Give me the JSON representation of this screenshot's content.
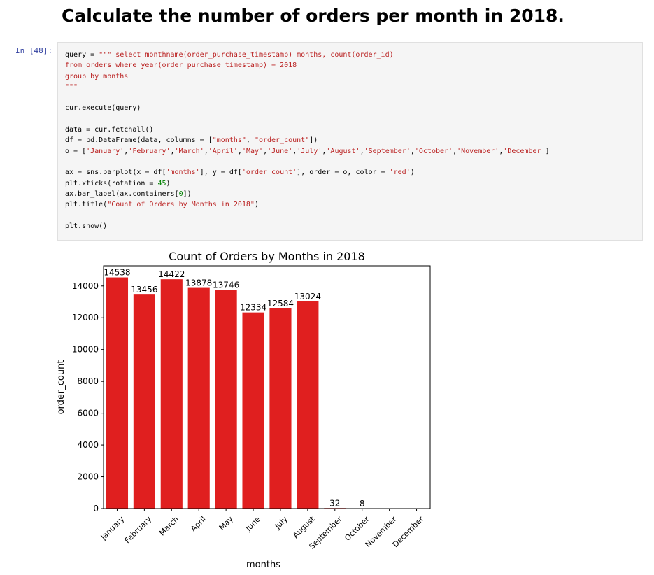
{
  "notebook": {
    "heading": "Calculate the number of orders per month in 2018.",
    "cell_prompt": "In [48]:",
    "code_lines": [
      [
        [
          "t",
          "query = "
        ],
        [
          "s",
          "\"\"\" select monthname(order_purchase_timestamp) months, count(order_id)"
        ]
      ],
      [
        [
          "s",
          "from orders where year(order_purchase_timestamp) = 2018"
        ]
      ],
      [
        [
          "s",
          "group by months"
        ]
      ],
      [
        [
          "s",
          "\"\"\""
        ]
      ],
      [],
      [
        [
          "t",
          "cur.execute(query)"
        ]
      ],
      [],
      [
        [
          "t",
          "data = cur.fetchall()"
        ]
      ],
      [
        [
          "t",
          "df = pd.DataFrame(data, columns = ["
        ],
        [
          "s",
          "\"months\""
        ],
        [
          "t",
          ", "
        ],
        [
          "s",
          "\"order_count\""
        ],
        [
          "t",
          "])"
        ]
      ],
      [
        [
          "t",
          "o = ["
        ],
        [
          "s",
          "'January'"
        ],
        [
          "t",
          ","
        ],
        [
          "s",
          "'February'"
        ],
        [
          "t",
          ","
        ],
        [
          "s",
          "'March'"
        ],
        [
          "t",
          ","
        ],
        [
          "s",
          "'April'"
        ],
        [
          "t",
          ","
        ],
        [
          "s",
          "'May'"
        ],
        [
          "t",
          ","
        ],
        [
          "s",
          "'June'"
        ],
        [
          "t",
          ","
        ],
        [
          "s",
          "'July'"
        ],
        [
          "t",
          ","
        ],
        [
          "s",
          "'August'"
        ],
        [
          "t",
          ","
        ],
        [
          "s",
          "'September'"
        ],
        [
          "t",
          ","
        ],
        [
          "s",
          "'October'"
        ],
        [
          "t",
          ","
        ],
        [
          "s",
          "'November'"
        ],
        [
          "t",
          ","
        ],
        [
          "s",
          "'December'"
        ],
        [
          "t",
          "]"
        ]
      ],
      [],
      [
        [
          "t",
          "ax = sns.barplot(x = df["
        ],
        [
          "s",
          "'months'"
        ],
        [
          "t",
          "], y = df["
        ],
        [
          "s",
          "'order_count'"
        ],
        [
          "t",
          "], order = o, color = "
        ],
        [
          "s",
          "'red'"
        ],
        [
          "t",
          ")"
        ]
      ],
      [
        [
          "t",
          "plt.xticks(rotation = "
        ],
        [
          "n",
          "45"
        ],
        [
          "t",
          ")"
        ]
      ],
      [
        [
          "t",
          "ax.bar_label(ax.containers["
        ],
        [
          "n",
          "0"
        ],
        [
          "t",
          "])"
        ]
      ],
      [
        [
          "t",
          "plt.title("
        ],
        [
          "s",
          "\"Count of Orders by Months in 2018\""
        ],
        [
          "t",
          ")"
        ]
      ],
      [],
      [
        [
          "t",
          "plt.show()"
        ]
      ]
    ]
  },
  "chart_data": {
    "type": "bar",
    "title": "Count of Orders by Months in 2018",
    "xlabel": "months",
    "ylabel": "order_count",
    "categories": [
      "January",
      "February",
      "March",
      "April",
      "May",
      "June",
      "July",
      "August",
      "September",
      "October",
      "November",
      "December"
    ],
    "values": [
      14538,
      13456,
      14422,
      13878,
      13746,
      12334,
      12584,
      13024,
      32,
      8,
      0,
      0
    ],
    "data_labels": [
      "14538",
      "13456",
      "14422",
      "13878",
      "13746",
      "12334",
      "12584",
      "13024",
      "32",
      "8",
      "",
      ""
    ],
    "yticks": [
      0,
      2000,
      4000,
      6000,
      8000,
      10000,
      12000,
      14000
    ],
    "ylim": [
      0,
      15266
    ],
    "bar_color": "#e01f1f",
    "grid": false
  }
}
